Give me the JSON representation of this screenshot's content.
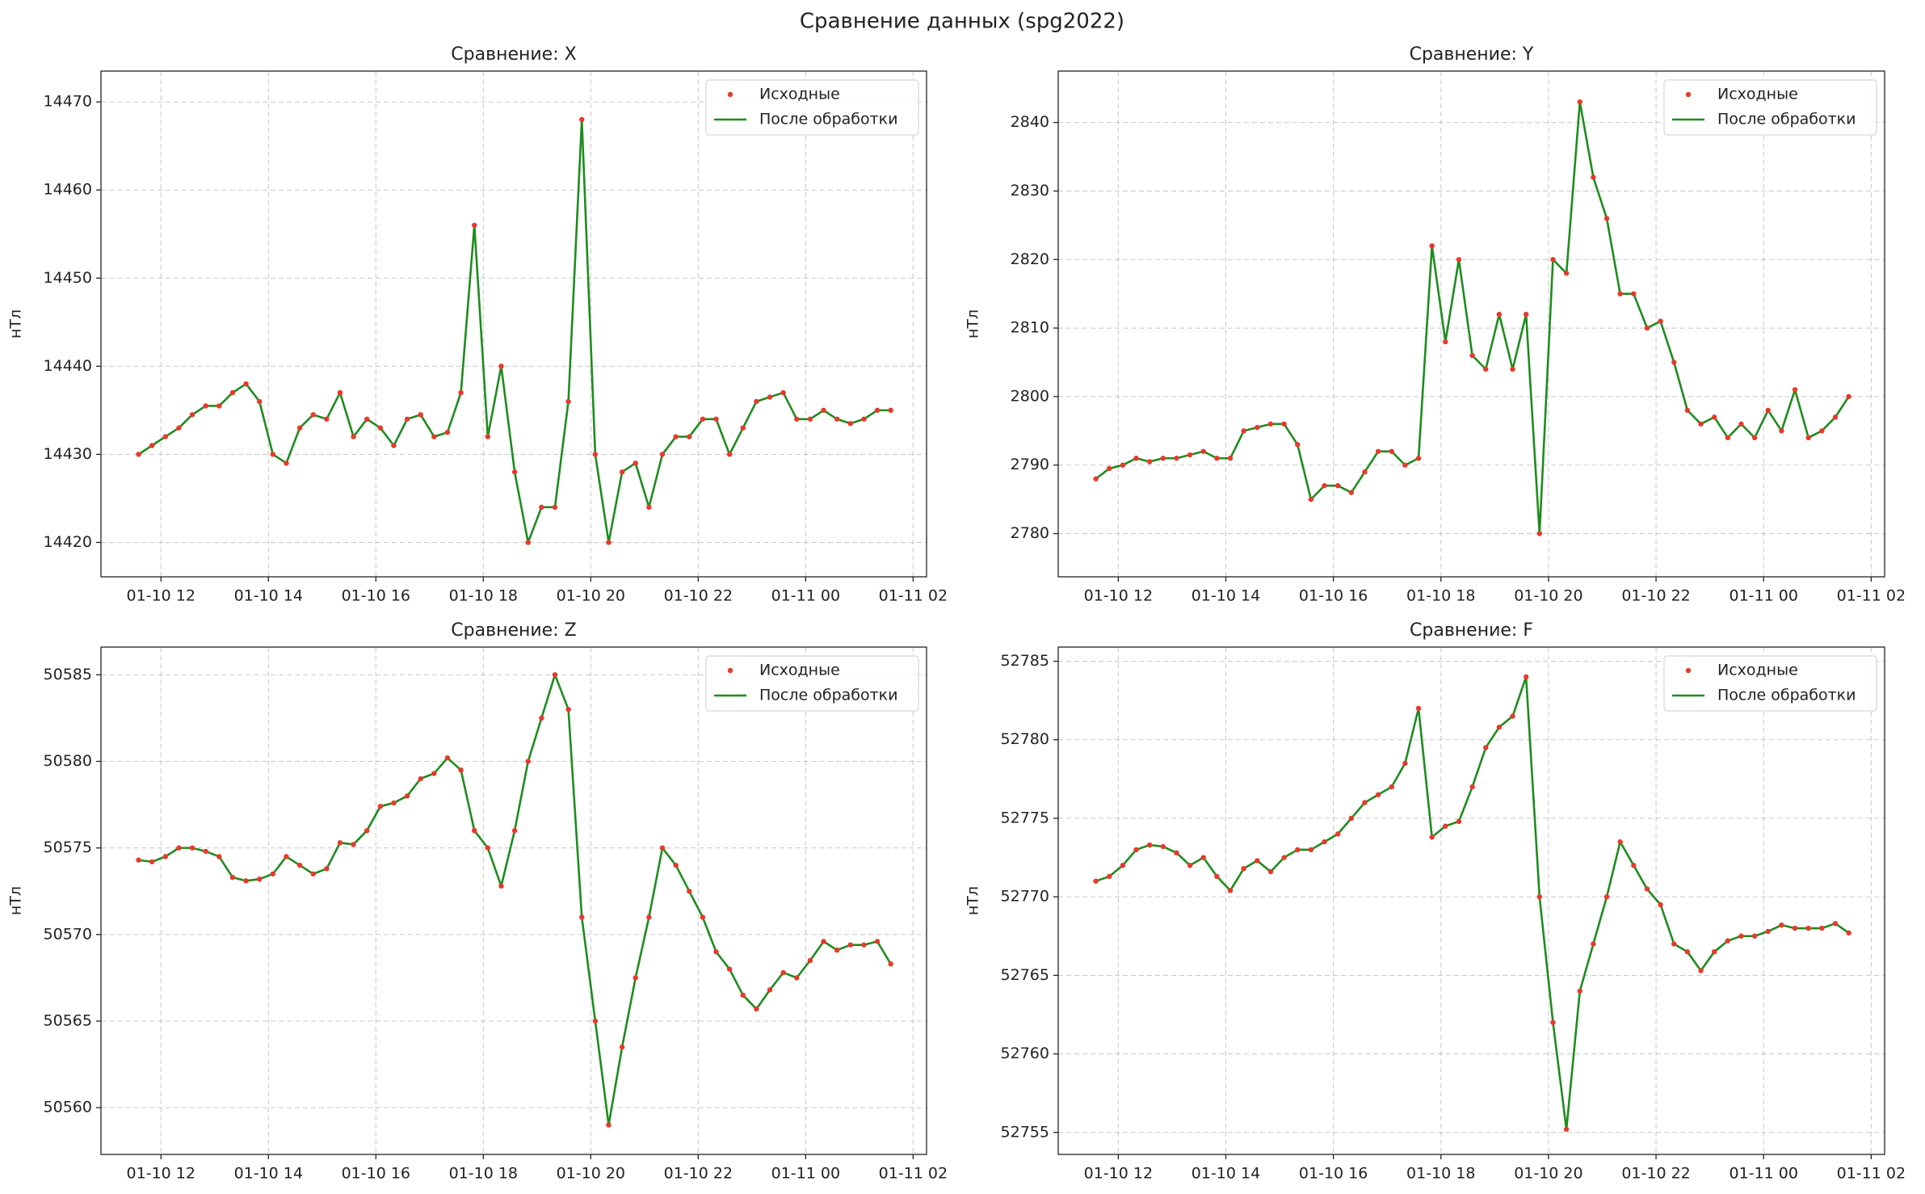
{
  "title": "Сравнение данных (spg2022)",
  "chart_data": [
    {
      "type": "line",
      "title": "Сравнение: X",
      "y_label": "нТл",
      "grid": true,
      "legend": "upper right",
      "x": [
        "01-10 11:35",
        "01-10 11:50",
        "01-10 12:05",
        "01-10 12:20",
        "01-10 12:35",
        "01-10 12:50",
        "01-10 13:05",
        "01-10 13:20",
        "01-10 13:35",
        "01-10 13:50",
        "01-10 14:05",
        "01-10 14:20",
        "01-10 14:35",
        "01-10 14:50",
        "01-10 15:05",
        "01-10 15:20",
        "01-10 15:35",
        "01-10 15:50",
        "01-10 16:05",
        "01-10 16:20",
        "01-10 16:35",
        "01-10 16:50",
        "01-10 17:05",
        "01-10 17:20",
        "01-10 17:35",
        "01-10 17:50",
        "01-10 18:05",
        "01-10 18:20",
        "01-10 18:35",
        "01-10 18:50",
        "01-10 19:05",
        "01-10 19:20",
        "01-10 19:35",
        "01-10 19:50",
        "01-10 20:05",
        "01-10 20:20",
        "01-10 20:35",
        "01-10 20:50",
        "01-10 21:05",
        "01-10 21:20",
        "01-10 21:35",
        "01-10 21:50",
        "01-10 22:05",
        "01-10 22:20",
        "01-10 22:35",
        "01-10 22:50",
        "01-10 23:05",
        "01-10 23:20",
        "01-10 23:35",
        "01-10 23:50",
        "01-11 00:05",
        "01-11 00:20",
        "01-11 00:35",
        "01-11 00:50",
        "01-11 01:05",
        "01-11 01:20",
        "01-11 01:35"
      ],
      "xlim": [
        "01-10 10:53",
        "01-11 02:15"
      ],
      "xticks": [
        "01-10 12",
        "01-10 14",
        "01-10 16",
        "01-10 18",
        "01-10 20",
        "01-10 22",
        "01-11 00",
        "01-11 02"
      ],
      "ylim": [
        14416.1,
        14473.5
      ],
      "yticks": [
        14420,
        14430,
        14440,
        14450,
        14460,
        14470
      ],
      "series": [
        {
          "name": "Исходные",
          "type": "scatter",
          "color": "#e8392b",
          "values": [
            14430,
            14431,
            14432,
            14433,
            14434.5,
            14435.5,
            14435.5,
            14437,
            14438,
            14436,
            14430,
            14429,
            14433,
            14434.5,
            14434,
            14437,
            14432,
            14434,
            14433,
            14431,
            14434,
            14434.5,
            14432,
            14432.5,
            14437,
            14456,
            14432,
            14440,
            14428,
            14420,
            14424,
            14424,
            14436,
            14468,
            14430,
            14420,
            14428,
            14429,
            14424,
            14430,
            14432,
            14432,
            14434,
            14434,
            14430,
            14433,
            14436,
            14436.5,
            14437,
            14434,
            14434,
            14435,
            14434,
            14433.5,
            14434,
            14435,
            14435
          ]
        },
        {
          "name": "После обработки",
          "type": "line",
          "color": "#1e8c1e",
          "values": [
            14430,
            14431,
            14432,
            14433,
            14434.5,
            14435.5,
            14435.5,
            14437,
            14438,
            14436,
            14430,
            14429,
            14433,
            14434.5,
            14434,
            14437,
            14432,
            14434,
            14433,
            14431,
            14434,
            14434.5,
            14432,
            14432.5,
            14437,
            14456,
            14432,
            14440,
            14428,
            14420,
            14424,
            14424,
            14436,
            14468,
            14430,
            14420,
            14428,
            14429,
            14424,
            14430,
            14432,
            14432,
            14434,
            14434,
            14430,
            14433,
            14436,
            14436.5,
            14437,
            14434,
            14434,
            14435,
            14434,
            14433.5,
            14434,
            14435,
            14435
          ]
        }
      ]
    },
    {
      "type": "line",
      "title": "Сравнение: Y",
      "y_label": "нТл",
      "grid": true,
      "legend": "upper right",
      "x": [
        "01-10 11:35",
        "01-10 11:50",
        "01-10 12:05",
        "01-10 12:20",
        "01-10 12:35",
        "01-10 12:50",
        "01-10 13:05",
        "01-10 13:20",
        "01-10 13:35",
        "01-10 13:50",
        "01-10 14:05",
        "01-10 14:20",
        "01-10 14:35",
        "01-10 14:50",
        "01-10 15:05",
        "01-10 15:20",
        "01-10 15:35",
        "01-10 15:50",
        "01-10 16:05",
        "01-10 16:20",
        "01-10 16:35",
        "01-10 16:50",
        "01-10 17:05",
        "01-10 17:20",
        "01-10 17:35",
        "01-10 17:50",
        "01-10 18:05",
        "01-10 18:20",
        "01-10 18:35",
        "01-10 18:50",
        "01-10 19:05",
        "01-10 19:20",
        "01-10 19:35",
        "01-10 19:50",
        "01-10 20:05",
        "01-10 20:20",
        "01-10 20:35",
        "01-10 20:50",
        "01-10 21:05",
        "01-10 21:20",
        "01-10 21:35",
        "01-10 21:50",
        "01-10 22:05",
        "01-10 22:20",
        "01-10 22:35",
        "01-10 22:50",
        "01-10 23:05",
        "01-10 23:20",
        "01-10 23:35",
        "01-10 23:50",
        "01-11 00:05",
        "01-11 00:20",
        "01-11 00:35",
        "01-11 00:50",
        "01-11 01:05",
        "01-11 01:20",
        "01-11 01:35"
      ],
      "xlim": [
        "01-10 10:53",
        "01-11 02:15"
      ],
      "xticks": [
        "01-10 12",
        "01-10 14",
        "01-10 16",
        "01-10 18",
        "01-10 20",
        "01-10 22",
        "01-11 00",
        "01-11 02"
      ],
      "ylim": [
        2773.7,
        2847.5
      ],
      "yticks": [
        2780,
        2790,
        2800,
        2810,
        2820,
        2830,
        2840
      ],
      "series": [
        {
          "name": "Исходные",
          "type": "scatter",
          "color": "#e8392b",
          "values": [
            2788,
            2789.5,
            2790,
            2791,
            2790.5,
            2791,
            2791,
            2791.5,
            2792,
            2791,
            2791,
            2795,
            2795.5,
            2796,
            2796,
            2793,
            2785,
            2787,
            2787,
            2786,
            2789,
            2792,
            2792,
            2790,
            2791,
            2822,
            2808,
            2820,
            2806,
            2804,
            2812,
            2804,
            2812,
            2780,
            2820,
            2818,
            2843,
            2832,
            2826,
            2815,
            2815,
            2810,
            2811,
            2805,
            2798,
            2796,
            2797,
            2794,
            2796,
            2794,
            2798,
            2795,
            2801,
            2794,
            2795,
            2797,
            2800
          ]
        },
        {
          "name": "После обработки",
          "type": "line",
          "color": "#1e8c1e",
          "values": [
            2788,
            2789.5,
            2790,
            2791,
            2790.5,
            2791,
            2791,
            2791.5,
            2792,
            2791,
            2791,
            2795,
            2795.5,
            2796,
            2796,
            2793,
            2785,
            2787,
            2787,
            2786,
            2789,
            2792,
            2792,
            2790,
            2791,
            2822,
            2808,
            2820,
            2806,
            2804,
            2812,
            2804,
            2812,
            2780,
            2820,
            2818,
            2843,
            2832,
            2826,
            2815,
            2815,
            2810,
            2811,
            2805,
            2798,
            2796,
            2797,
            2794,
            2796,
            2794,
            2798,
            2795,
            2801,
            2794,
            2795,
            2797,
            2800
          ]
        }
      ]
    },
    {
      "type": "line",
      "title": "Сравнение: Z",
      "y_label": "нТл",
      "grid": true,
      "legend": "upper right",
      "x": [
        "01-10 11:35",
        "01-10 11:50",
        "01-10 12:05",
        "01-10 12:20",
        "01-10 12:35",
        "01-10 12:50",
        "01-10 13:05",
        "01-10 13:20",
        "01-10 13:35",
        "01-10 13:50",
        "01-10 14:05",
        "01-10 14:20",
        "01-10 14:35",
        "01-10 14:50",
        "01-10 15:05",
        "01-10 15:20",
        "01-10 15:35",
        "01-10 15:50",
        "01-10 16:05",
        "01-10 16:20",
        "01-10 16:35",
        "01-10 16:50",
        "01-10 17:05",
        "01-10 17:20",
        "01-10 17:35",
        "01-10 17:50",
        "01-10 18:05",
        "01-10 18:20",
        "01-10 18:35",
        "01-10 18:50",
        "01-10 19:05",
        "01-10 19:20",
        "01-10 19:35",
        "01-10 19:50",
        "01-10 20:05",
        "01-10 20:20",
        "01-10 20:35",
        "01-10 20:50",
        "01-10 21:05",
        "01-10 21:20",
        "01-10 21:35",
        "01-10 21:50",
        "01-10 22:05",
        "01-10 22:20",
        "01-10 22:35",
        "01-10 22:50",
        "01-10 23:05",
        "01-10 23:20",
        "01-10 23:35",
        "01-10 23:50",
        "01-11 00:05",
        "01-11 00:20",
        "01-11 00:35",
        "01-11 00:50",
        "01-11 01:05",
        "01-11 01:20",
        "01-11 01:35"
      ],
      "xlim": [
        "01-10 10:53",
        "01-11 02:15"
      ],
      "xticks": [
        "01-10 12",
        "01-10 14",
        "01-10 16",
        "01-10 18",
        "01-10 20",
        "01-10 22",
        "01-11 00",
        "01-11 02"
      ],
      "ylim": [
        50557.3,
        50586.6
      ],
      "yticks": [
        50560,
        50565,
        50570,
        50575,
        50580,
        50585
      ],
      "series": [
        {
          "name": "Исходные",
          "type": "scatter",
          "color": "#e8392b",
          "values": [
            50574.3,
            50574.2,
            50574.5,
            50575,
            50575,
            50574.8,
            50574.5,
            50573.3,
            50573.1,
            50573.2,
            50573.5,
            50574.5,
            50574,
            50573.5,
            50573.8,
            50575.3,
            50575.2,
            50576,
            50577.4,
            50577.6,
            50578,
            50579,
            50579.3,
            50580.2,
            50579.5,
            50576,
            50575,
            50572.8,
            50576,
            50580,
            50582.5,
            50585,
            50583,
            50571,
            50565,
            50559,
            50563.5,
            50567.5,
            50571,
            50575,
            50574,
            50572.5,
            50571,
            50569,
            50568,
            50566.5,
            50565.7,
            50566.8,
            50567.8,
            50567.5,
            50568.5,
            50569.6,
            50569.1,
            50569.4,
            50569.4,
            50569.6,
            50568.3
          ]
        },
        {
          "name": "После обработки",
          "type": "line",
          "color": "#1e8c1e",
          "values": [
            50574.3,
            50574.2,
            50574.5,
            50575,
            50575,
            50574.8,
            50574.5,
            50573.3,
            50573.1,
            50573.2,
            50573.5,
            50574.5,
            50574,
            50573.5,
            50573.8,
            50575.3,
            50575.2,
            50576,
            50577.4,
            50577.6,
            50578,
            50579,
            50579.3,
            50580.2,
            50579.5,
            50576,
            50575,
            50572.8,
            50576,
            50580,
            50582.5,
            50585,
            50583,
            50571,
            50565,
            50559,
            50563.5,
            50567.5,
            50571,
            50575,
            50574,
            50572.5,
            50571,
            50569,
            50568,
            50566.5,
            50565.7,
            50566.8,
            50567.8,
            50567.5,
            50568.5,
            50569.6,
            50569.1,
            50569.4,
            50569.4,
            50569.6,
            50568.3
          ]
        }
      ]
    },
    {
      "type": "line",
      "title": "Сравнение: F",
      "y_label": "нТл",
      "grid": true,
      "legend": "upper right",
      "x": [
        "01-10 11:35",
        "01-10 11:50",
        "01-10 12:05",
        "01-10 12:20",
        "01-10 12:35",
        "01-10 12:50",
        "01-10 13:05",
        "01-10 13:20",
        "01-10 13:35",
        "01-10 13:50",
        "01-10 14:05",
        "01-10 14:20",
        "01-10 14:35",
        "01-10 14:50",
        "01-10 15:05",
        "01-10 15:20",
        "01-10 15:35",
        "01-10 15:50",
        "01-10 16:05",
        "01-10 16:20",
        "01-10 16:35",
        "01-10 16:50",
        "01-10 17:05",
        "01-10 17:20",
        "01-10 17:35",
        "01-10 17:50",
        "01-10 18:05",
        "01-10 18:20",
        "01-10 18:35",
        "01-10 18:50",
        "01-10 19:05",
        "01-10 19:20",
        "01-10 19:35",
        "01-10 19:50",
        "01-10 20:05",
        "01-10 20:20",
        "01-10 20:35",
        "01-10 20:50",
        "01-10 21:05",
        "01-10 21:20",
        "01-10 21:35",
        "01-10 21:50",
        "01-10 22:05",
        "01-10 22:20",
        "01-10 22:35",
        "01-10 22:50",
        "01-10 23:05",
        "01-10 23:20",
        "01-10 23:35",
        "01-10 23:50",
        "01-11 00:05",
        "01-11 00:20",
        "01-11 00:35",
        "01-11 00:50",
        "01-11 01:05",
        "01-11 01:20",
        "01-11 01:35"
      ],
      "xlim": [
        "01-10 10:53",
        "01-11 02:15"
      ],
      "xticks": [
        "01-10 12",
        "01-10 14",
        "01-10 16",
        "01-10 18",
        "01-10 20",
        "01-10 22",
        "01-11 00",
        "01-11 02"
      ],
      "ylim": [
        52753.6,
        52785.9
      ],
      "yticks": [
        52755,
        52760,
        52765,
        52770,
        52775,
        52780,
        52785
      ],
      "series": [
        {
          "name": "Исходные",
          "type": "scatter",
          "color": "#e8392b",
          "values": [
            52771,
            52771.3,
            52772,
            52773,
            52773.3,
            52773.2,
            52772.8,
            52772,
            52772.5,
            52771.3,
            52770.4,
            52771.8,
            52772.3,
            52771.6,
            52772.5,
            52773,
            52773,
            52773.5,
            52774,
            52775,
            52776,
            52776.5,
            52777,
            52778.5,
            52782,
            52773.8,
            52774.5,
            52774.8,
            52777,
            52779.5,
            52780.8,
            52781.5,
            52784,
            52770,
            52762,
            52755.2,
            52764,
            52767,
            52770,
            52773.5,
            52772,
            52770.5,
            52769.5,
            52767,
            52766.5,
            52765.3,
            52766.5,
            52767.2,
            52767.5,
            52767.5,
            52767.8,
            52768.2,
            52768,
            52768,
            52768,
            52768.3,
            52767.7
          ]
        },
        {
          "name": "После обработки",
          "type": "line",
          "color": "#1e8c1e",
          "values": [
            52771,
            52771.3,
            52772,
            52773,
            52773.3,
            52773.2,
            52772.8,
            52772,
            52772.5,
            52771.3,
            52770.4,
            52771.8,
            52772.3,
            52771.6,
            52772.5,
            52773,
            52773,
            52773.5,
            52774,
            52775,
            52776,
            52776.5,
            52777,
            52778.5,
            52782,
            52773.8,
            52774.5,
            52774.8,
            52777,
            52779.5,
            52780.8,
            52781.5,
            52784,
            52770,
            52762,
            52755.2,
            52764,
            52767,
            52770,
            52773.5,
            52772,
            52770.5,
            52769.5,
            52767,
            52766.5,
            52765.3,
            52766.5,
            52767.2,
            52767.5,
            52767.5,
            52767.8,
            52768.2,
            52768,
            52768,
            52768,
            52768.3,
            52767.7
          ]
        }
      ]
    }
  ]
}
